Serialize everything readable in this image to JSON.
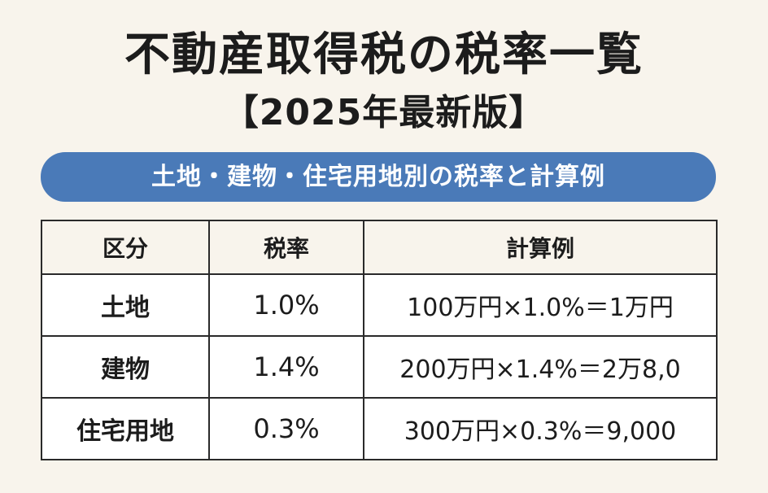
{
  "title": "不動産取得税の税率一覧",
  "subtitle": "【2025年最新版】",
  "banner": "土地・建物・住宅用地別の税率と計算例",
  "table": {
    "headers": [
      "区分",
      "税率",
      "計算例"
    ],
    "rows": [
      {
        "category": "土地",
        "rate": "1.0%",
        "example": "100万円×1.0%＝1万円"
      },
      {
        "category": "建物",
        "rate": "1.4%",
        "example": "200万円×1.4%＝2万8,0"
      },
      {
        "category": "住宅用地",
        "rate": "0.3%",
        "example": "300万円×0.3%＝9,000"
      }
    ]
  }
}
